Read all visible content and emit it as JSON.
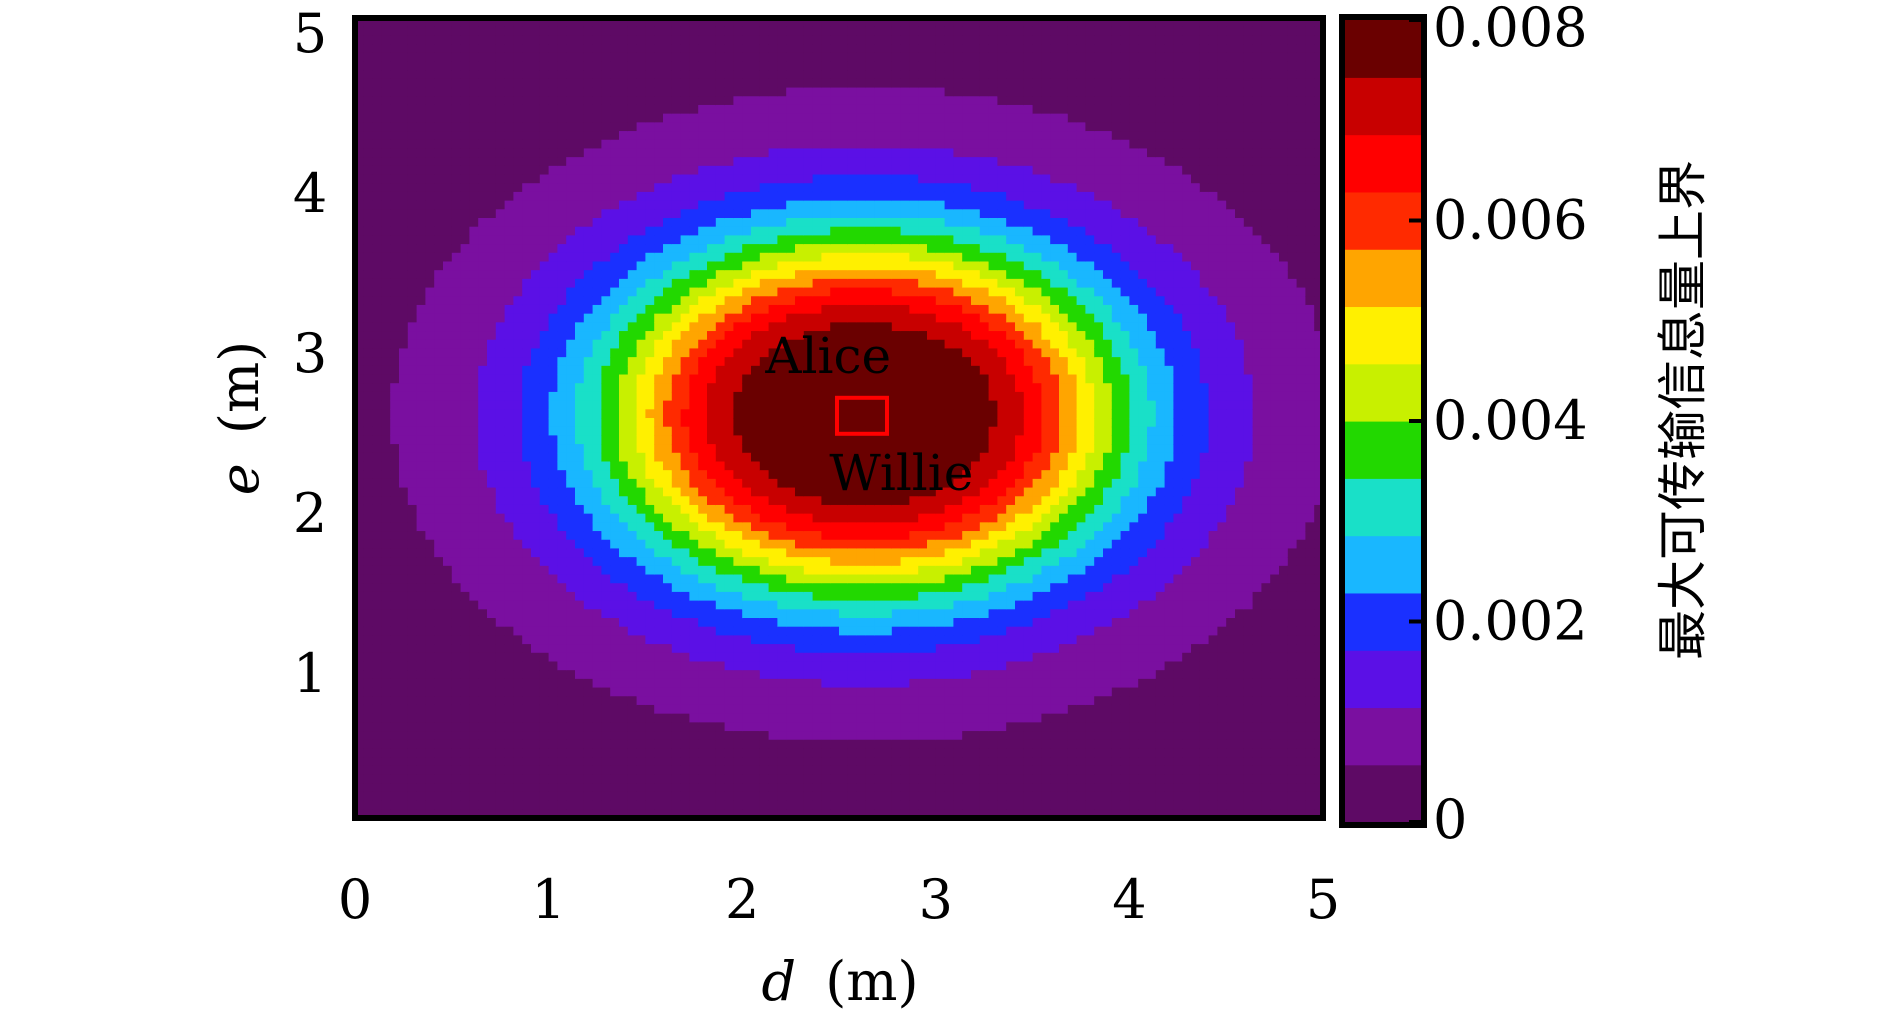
{
  "chart_data": {
    "type": "heatmap",
    "title": "",
    "xlabel": {
      "var": "d",
      "unit": "(m)"
    },
    "ylabel": {
      "var": "e",
      "unit": "(m)"
    },
    "xlim": [
      0,
      5
    ],
    "ylim": [
      0.1,
      5.1
    ],
    "x_ticks": [
      "0",
      "1",
      "2",
      "3",
      "4",
      "5"
    ],
    "y_ticks": [
      "1",
      "2",
      "3",
      "4",
      "5"
    ],
    "grid": false,
    "field": {
      "peak_location": [
        2.63,
        2.62
      ],
      "peak_value": 0.008,
      "min_value": 0.0,
      "falloff_radius_x": 1.25,
      "falloff_radius_y": 1.05
    },
    "colorbar": {
      "label": "最大可传输信息量上界",
      "range": [
        0,
        0.008
      ],
      "ticks": [
        "0",
        "0.002",
        "0.004",
        "0.006",
        "0.008"
      ],
      "colors": [
        "#5e0a65",
        "#7a0fa0",
        "#5b10e6",
        "#1a30ff",
        "#19b7ff",
        "#19e0c8",
        "#22d800",
        "#c8f000",
        "#fff000",
        "#ffa500",
        "#ff2a00",
        "#ff0000",
        "#c80000",
        "#6a0000"
      ]
    },
    "annotations": [
      {
        "text": "Alice",
        "x": 2.12,
        "y": 2.88,
        "color": "#000000"
      },
      {
        "text": "Willie",
        "x": 2.45,
        "y": 2.15,
        "color": "#1a10e8"
      }
    ],
    "marker": {
      "x": 2.5,
      "y": 2.62,
      "color": "#ff0000"
    }
  }
}
